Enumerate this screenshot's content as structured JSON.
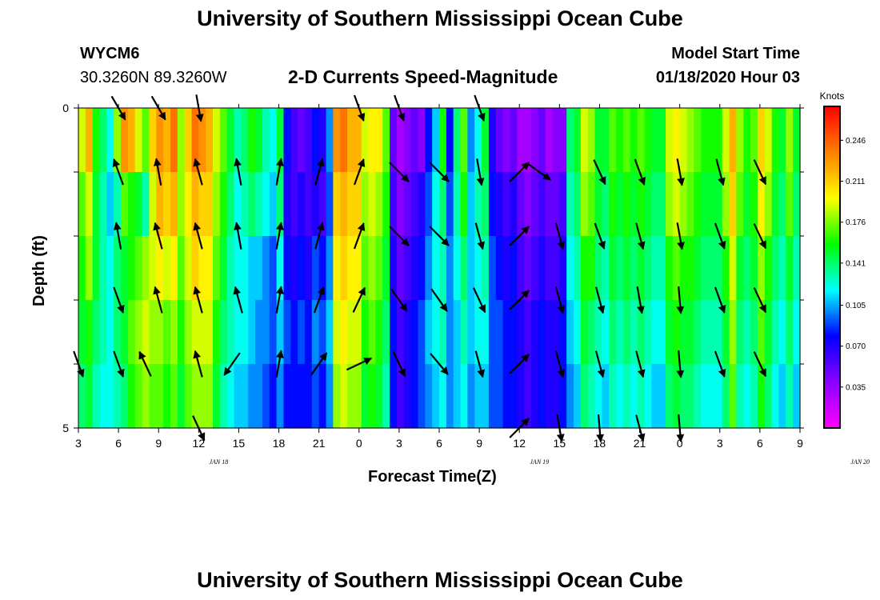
{
  "header": {
    "title": "University of Southern Mississippi Ocean Cube",
    "station_id": "WYCM6",
    "station_coords": "30.3260N 89.3260W",
    "plot_title": "2-D Currents Speed-Magnitude",
    "model_start_label": "Model Start Time",
    "model_start_value": "01/18/2020 Hour 03"
  },
  "footer": {
    "title": "University of Southern Mississippi Ocean Cube"
  },
  "chart_data": {
    "type": "heatmap",
    "title": "2-D Currents Speed-Magnitude",
    "xlabel": "Forecast Time(Z)",
    "ylabel": "Depth (ft)",
    "x_tick_labels": [
      "3",
      "6",
      "9",
      "12",
      "15",
      "18",
      "21",
      "0",
      "3",
      "6",
      "9",
      "12",
      "15",
      "18",
      "21",
      "0",
      "3",
      "6",
      "9"
    ],
    "date_labels": [
      {
        "label": "JAN 18",
        "hour_offset": 10.5
      },
      {
        "label": "JAN 19",
        "hour_offset": 34.5
      },
      {
        "label": "JAN 20",
        "hour_offset": 58.5
      }
    ],
    "x_range_hours": [
      0,
      54
    ],
    "y_tick_labels": [
      "0",
      "5"
    ],
    "y_range": [
      0,
      5
    ],
    "colorbar": {
      "unit": "Knots",
      "tick_labels": [
        "0.246",
        "0.211",
        "0.176",
        "0.141",
        "0.105",
        "0.070",
        "0.035"
      ],
      "tick_values": [
        0.246,
        0.211,
        0.176,
        0.141,
        0.105,
        0.07,
        0.035
      ],
      "range": [
        0.0,
        0.275
      ],
      "stops": [
        "#ff00ff",
        "#8a00ff",
        "#0000ff",
        "#00ffff",
        "#00ff00",
        "#ffff00",
        "#ff8000",
        "#ff0000"
      ]
    },
    "rows": 5,
    "speed": [
      [
        0.19,
        0.22,
        0.16,
        0.14,
        0.12,
        0.18,
        0.23,
        0.22,
        0.19,
        0.17,
        0.21,
        0.23,
        0.22,
        0.24,
        0.18,
        0.21,
        0.24,
        0.23,
        0.22,
        0.19,
        0.17,
        0.15,
        0.13,
        0.14,
        0.16,
        0.15,
        0.13,
        0.12,
        0.15,
        0.08,
        0.06,
        0.05,
        0.06,
        0.08,
        0.07,
        0.1,
        0.23,
        0.24,
        0.22,
        0.22,
        0.19,
        0.2,
        0.2,
        0.17,
        0.05,
        0.03,
        0.04,
        0.05,
        0.04,
        0.08,
        0.11,
        0.16,
        0.08,
        0.14,
        0.17,
        0.1,
        0.12,
        0.15,
        0.07,
        0.05,
        0.04,
        0.05,
        0.03,
        0.03,
        0.04,
        0.05,
        0.03,
        0.04,
        0.04,
        0.14,
        0.15,
        0.19,
        0.18,
        0.15,
        0.15,
        0.17,
        0.16,
        0.17,
        0.16,
        0.17,
        0.16,
        0.15,
        0.15,
        0.19,
        0.2,
        0.19,
        0.18,
        0.17,
        0.16,
        0.16,
        0.16,
        0.19,
        0.22,
        0.18,
        0.16,
        0.17,
        0.21,
        0.19,
        0.16,
        0.15,
        0.18,
        0.15
      ],
      [
        0.17,
        0.19,
        0.15,
        0.13,
        0.11,
        0.13,
        0.17,
        0.16,
        0.15,
        0.13,
        0.19,
        0.22,
        0.21,
        0.22,
        0.18,
        0.2,
        0.22,
        0.21,
        0.21,
        0.18,
        0.16,
        0.14,
        0.12,
        0.13,
        0.14,
        0.13,
        0.12,
        0.11,
        0.14,
        0.07,
        0.06,
        0.07,
        0.06,
        0.07,
        0.06,
        0.09,
        0.21,
        0.22,
        0.21,
        0.21,
        0.18,
        0.19,
        0.18,
        0.16,
        0.06,
        0.04,
        0.05,
        0.06,
        0.07,
        0.09,
        0.12,
        0.14,
        0.09,
        0.13,
        0.16,
        0.11,
        0.13,
        0.14,
        0.08,
        0.07,
        0.06,
        0.07,
        0.05,
        0.04,
        0.05,
        0.06,
        0.05,
        0.05,
        0.06,
        0.13,
        0.14,
        0.18,
        0.17,
        0.15,
        0.14,
        0.16,
        0.15,
        0.16,
        0.15,
        0.16,
        0.15,
        0.14,
        0.14,
        0.18,
        0.19,
        0.18,
        0.17,
        0.16,
        0.15,
        0.15,
        0.15,
        0.18,
        0.21,
        0.17,
        0.15,
        0.16,
        0.2,
        0.18,
        0.15,
        0.14,
        0.17,
        0.14
      ],
      [
        0.16,
        0.18,
        0.15,
        0.13,
        0.12,
        0.14,
        0.15,
        0.16,
        0.17,
        0.18,
        0.19,
        0.2,
        0.19,
        0.2,
        0.17,
        0.19,
        0.21,
        0.2,
        0.2,
        0.17,
        0.15,
        0.13,
        0.12,
        0.12,
        0.11,
        0.11,
        0.1,
        0.09,
        0.12,
        0.08,
        0.07,
        0.08,
        0.07,
        0.09,
        0.08,
        0.1,
        0.2,
        0.21,
        0.2,
        0.2,
        0.17,
        0.18,
        0.17,
        0.15,
        0.07,
        0.05,
        0.06,
        0.07,
        0.08,
        0.1,
        0.12,
        0.13,
        0.1,
        0.12,
        0.14,
        0.11,
        0.12,
        0.13,
        0.09,
        0.08,
        0.07,
        0.08,
        0.06,
        0.05,
        0.06,
        0.07,
        0.06,
        0.06,
        0.07,
        0.12,
        0.13,
        0.16,
        0.16,
        0.14,
        0.13,
        0.15,
        0.14,
        0.15,
        0.14,
        0.15,
        0.14,
        0.13,
        0.13,
        0.16,
        0.17,
        0.16,
        0.16,
        0.15,
        0.14,
        0.14,
        0.14,
        0.16,
        0.19,
        0.15,
        0.14,
        0.15,
        0.18,
        0.16,
        0.14,
        0.13,
        0.15,
        0.13
      ],
      [
        0.15,
        0.16,
        0.14,
        0.13,
        0.12,
        0.14,
        0.15,
        0.17,
        0.18,
        0.19,
        0.18,
        0.18,
        0.17,
        0.18,
        0.16,
        0.18,
        0.19,
        0.19,
        0.19,
        0.16,
        0.14,
        0.13,
        0.12,
        0.12,
        0.11,
        0.1,
        0.1,
        0.09,
        0.11,
        0.09,
        0.08,
        0.09,
        0.08,
        0.1,
        0.09,
        0.11,
        0.19,
        0.2,
        0.19,
        0.19,
        0.16,
        0.17,
        0.16,
        0.14,
        0.08,
        0.06,
        0.07,
        0.08,
        0.09,
        0.11,
        0.12,
        0.13,
        0.1,
        0.11,
        0.13,
        0.11,
        0.12,
        0.12,
        0.09,
        0.09,
        0.08,
        0.08,
        0.07,
        0.06,
        0.07,
        0.08,
        0.07,
        0.07,
        0.08,
        0.11,
        0.12,
        0.15,
        0.14,
        0.13,
        0.12,
        0.14,
        0.13,
        0.14,
        0.13,
        0.14,
        0.13,
        0.12,
        0.12,
        0.15,
        0.16,
        0.15,
        0.15,
        0.14,
        0.13,
        0.13,
        0.13,
        0.15,
        0.18,
        0.14,
        0.13,
        0.14,
        0.17,
        0.15,
        0.13,
        0.12,
        0.14,
        0.12
      ],
      [
        0.14,
        0.15,
        0.13,
        0.12,
        0.12,
        0.13,
        0.14,
        0.16,
        0.17,
        0.18,
        0.17,
        0.17,
        0.16,
        0.17,
        0.15,
        0.17,
        0.18,
        0.18,
        0.18,
        0.15,
        0.13,
        0.12,
        0.11,
        0.11,
        0.1,
        0.1,
        0.09,
        0.08,
        0.1,
        0.08,
        0.08,
        0.08,
        0.08,
        0.09,
        0.08,
        0.1,
        0.18,
        0.19,
        0.18,
        0.18,
        0.15,
        0.16,
        0.15,
        0.13,
        0.08,
        0.06,
        0.07,
        0.08,
        0.09,
        0.1,
        0.11,
        0.12,
        0.1,
        0.11,
        0.12,
        0.1,
        0.11,
        0.11,
        0.09,
        0.09,
        0.08,
        0.08,
        0.07,
        0.06,
        0.07,
        0.08,
        0.07,
        0.07,
        0.08,
        0.1,
        0.11,
        0.14,
        0.13,
        0.12,
        0.11,
        0.13,
        0.12,
        0.13,
        0.12,
        0.13,
        0.12,
        0.11,
        0.11,
        0.14,
        0.15,
        0.14,
        0.14,
        0.13,
        0.12,
        0.12,
        0.12,
        0.14,
        0.17,
        0.13,
        0.12,
        0.13,
        0.16,
        0.14,
        0.12,
        0.11,
        0.13,
        0.11
      ]
    ],
    "vectors": [
      {
        "hour": 3,
        "row": 0,
        "dir": 150
      },
      {
        "hour": 6,
        "row": 0,
        "dir": 150
      },
      {
        "hour": 9,
        "row": 0,
        "dir": 170
      },
      {
        "hour": 21,
        "row": 0,
        "dir": 160
      },
      {
        "hour": 24,
        "row": 0,
        "dir": 160
      },
      {
        "hour": 30,
        "row": 0,
        "dir": 160
      },
      {
        "hour": 3,
        "row": 1,
        "dir": 340
      },
      {
        "hour": 6,
        "row": 1,
        "dir": 350
      },
      {
        "hour": 9,
        "row": 1,
        "dir": 345
      },
      {
        "hour": 12,
        "row": 1,
        "dir": 350
      },
      {
        "hour": 15,
        "row": 1,
        "dir": 10
      },
      {
        "hour": 18,
        "row": 1,
        "dir": 15
      },
      {
        "hour": 21,
        "row": 1,
        "dir": 20
      },
      {
        "hour": 24,
        "row": 1,
        "dir": 135
      },
      {
        "hour": 27,
        "row": 1,
        "dir": 135
      },
      {
        "hour": 30,
        "row": 1,
        "dir": 170
      },
      {
        "hour": 33,
        "row": 1,
        "dir": 45
      },
      {
        "hour": 34.5,
        "row": 1,
        "dir": 125
      },
      {
        "hour": 39,
        "row": 1,
        "dir": 155
      },
      {
        "hour": 42,
        "row": 1,
        "dir": 160
      },
      {
        "hour": 45,
        "row": 1,
        "dir": 170
      },
      {
        "hour": 48,
        "row": 1,
        "dir": 165
      },
      {
        "hour": 51,
        "row": 1,
        "dir": 155
      },
      {
        "hour": 3,
        "row": 2,
        "dir": 350
      },
      {
        "hour": 6,
        "row": 2,
        "dir": 345
      },
      {
        "hour": 9,
        "row": 2,
        "dir": 345
      },
      {
        "hour": 12,
        "row": 2,
        "dir": 350
      },
      {
        "hour": 15,
        "row": 2,
        "dir": 10
      },
      {
        "hour": 18,
        "row": 2,
        "dir": 15
      },
      {
        "hour": 21,
        "row": 2,
        "dir": 20
      },
      {
        "hour": 24,
        "row": 2,
        "dir": 135
      },
      {
        "hour": 27,
        "row": 2,
        "dir": 135
      },
      {
        "hour": 30,
        "row": 2,
        "dir": 165
      },
      {
        "hour": 33,
        "row": 2,
        "dir": 45
      },
      {
        "hour": 36,
        "row": 2,
        "dir": 165
      },
      {
        "hour": 39,
        "row": 2,
        "dir": 160
      },
      {
        "hour": 42,
        "row": 2,
        "dir": 165
      },
      {
        "hour": 45,
        "row": 2,
        "dir": 170
      },
      {
        "hour": 48,
        "row": 2,
        "dir": 160
      },
      {
        "hour": 51,
        "row": 2,
        "dir": 155
      },
      {
        "hour": 3,
        "row": 3,
        "dir": 160
      },
      {
        "hour": 6,
        "row": 3,
        "dir": 345
      },
      {
        "hour": 9,
        "row": 3,
        "dir": 345
      },
      {
        "hour": 12,
        "row": 3,
        "dir": 345
      },
      {
        "hour": 15,
        "row": 3,
        "dir": 10
      },
      {
        "hour": 18,
        "row": 3,
        "dir": 20
      },
      {
        "hour": 21,
        "row": 3,
        "dir": 25
      },
      {
        "hour": 24,
        "row": 3,
        "dir": 145
      },
      {
        "hour": 27,
        "row": 3,
        "dir": 145
      },
      {
        "hour": 30,
        "row": 3,
        "dir": 155
      },
      {
        "hour": 33,
        "row": 3,
        "dir": 45
      },
      {
        "hour": 36,
        "row": 3,
        "dir": 165
      },
      {
        "hour": 39,
        "row": 3,
        "dir": 165
      },
      {
        "hour": 42,
        "row": 3,
        "dir": 170
      },
      {
        "hour": 45,
        "row": 3,
        "dir": 175
      },
      {
        "hour": 48,
        "row": 3,
        "dir": 160
      },
      {
        "hour": 51,
        "row": 3,
        "dir": 155
      },
      {
        "hour": 0,
        "row": 4,
        "dir": 160
      },
      {
        "hour": 3,
        "row": 4,
        "dir": 160
      },
      {
        "hour": 5,
        "row": 4,
        "dir": 335
      },
      {
        "hour": 9,
        "row": 4,
        "dir": 345
      },
      {
        "hour": 11.5,
        "row": 4,
        "dir": 215
      },
      {
        "hour": 15,
        "row": 4,
        "dir": 10
      },
      {
        "hour": 18,
        "row": 4,
        "dir": 35
      },
      {
        "hour": 21,
        "row": 4,
        "dir": 65
      },
      {
        "hour": 24,
        "row": 4,
        "dir": 155
      },
      {
        "hour": 27,
        "row": 4,
        "dir": 140
      },
      {
        "hour": 30,
        "row": 4,
        "dir": 165
      },
      {
        "hour": 33,
        "row": 4,
        "dir": 45
      },
      {
        "hour": 36,
        "row": 4,
        "dir": 165
      },
      {
        "hour": 39,
        "row": 4,
        "dir": 165
      },
      {
        "hour": 42,
        "row": 4,
        "dir": 165
      },
      {
        "hour": 45,
        "row": 4,
        "dir": 175
      },
      {
        "hour": 48,
        "row": 4,
        "dir": 160
      },
      {
        "hour": 51,
        "row": 4,
        "dir": 155
      },
      {
        "hour": 9,
        "row": 5,
        "dir": 155
      },
      {
        "hour": 33,
        "row": 5,
        "dir": 45
      },
      {
        "hour": 36,
        "row": 5,
        "dir": 170
      },
      {
        "hour": 39,
        "row": 5,
        "dir": 175
      },
      {
        "hour": 42,
        "row": 5,
        "dir": 165
      },
      {
        "hour": 45,
        "row": 5,
        "dir": 175
      }
    ]
  }
}
